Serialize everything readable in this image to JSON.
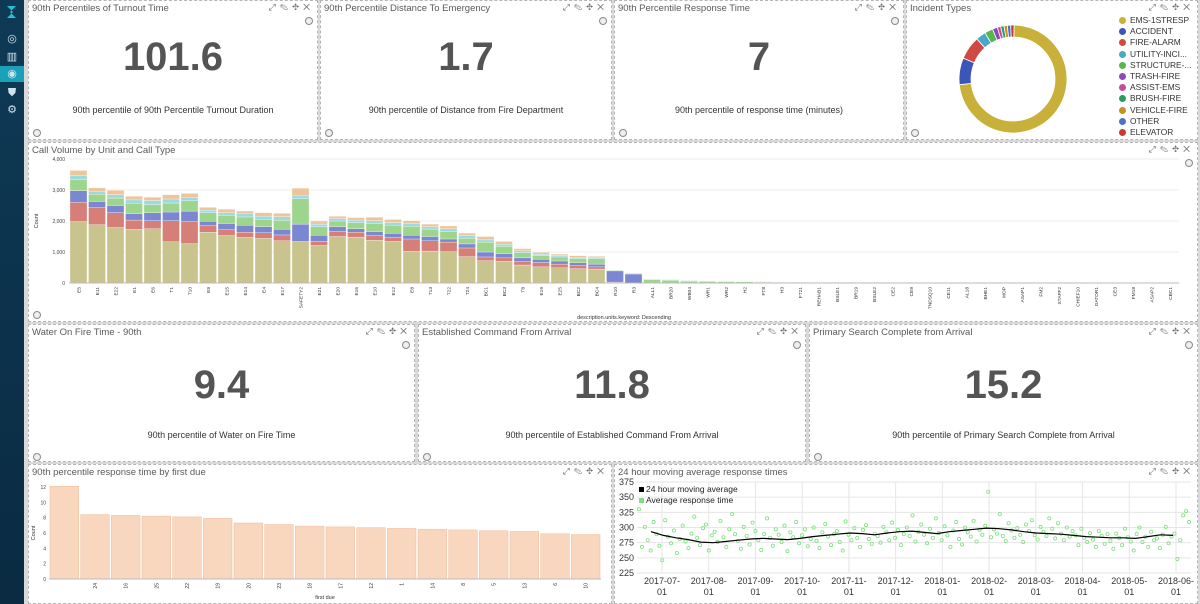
{
  "nav": {
    "items": [
      "dashboard",
      "visualize",
      "discover",
      "devtools",
      "settings"
    ]
  },
  "panels": {
    "turnout": {
      "title": "90th Percentiles of Turnout Time",
      "value": "101.6",
      "label": "90th percentile of 90th Percentile Turnout Duration"
    },
    "distance": {
      "title": "90th Percentile Distance To Emergency",
      "value": "1.7",
      "label": "90th percentile of Distance from Fire Department"
    },
    "response": {
      "title": "90th Percentile Response Time",
      "value": "7",
      "label": "90th percentile of response time (minutes)"
    },
    "incidents": {
      "title": "Incident Types",
      "legend": [
        {
          "label": "EMS-1STRESP",
          "color": "#c9b03a"
        },
        {
          "label": "ACCIDENT",
          "color": "#3c55b9"
        },
        {
          "label": "FIRE-ALARM",
          "color": "#cf4a43"
        },
        {
          "label": "UTILITY-INCI...",
          "color": "#4aa7c9"
        },
        {
          "label": "STRUCTURE-...",
          "color": "#58b64d"
        },
        {
          "label": "TRASH-FIRE",
          "color": "#8c4bb3"
        },
        {
          "label": "ASSIST-EMS",
          "color": "#c94b9f"
        },
        {
          "label": "BRUSH-FIRE",
          "color": "#2e9a62"
        },
        {
          "label": "VEHICLE-FIRE",
          "color": "#c7911f"
        },
        {
          "label": "OTHER",
          "color": "#4f6fca"
        },
        {
          "label": "ELEVATOR",
          "color": "#c63b2d"
        }
      ]
    },
    "callvolume": {
      "title": "Call Volume by Unit and Call Type"
    },
    "water": {
      "title": "Water On Fire Time - 90th",
      "value": "9.4",
      "label": "90th percentile of Water on Fire Time"
    },
    "command": {
      "title": "Established Command From Arrival",
      "value": "11.8",
      "label": "90th percentile of Established Command From Arrival"
    },
    "search": {
      "title": "Primary Search Complete from Arrival",
      "value": "15.2",
      "label": "90th percentile of Primary Search Complete from Arrival"
    },
    "firstdue": {
      "title": "90th percentile response time by first due"
    },
    "moving": {
      "title": "24 hour moving average response times"
    }
  },
  "chart_data": [
    {
      "type": "bar",
      "title": "Call Volume by Unit and Call Type",
      "xlabel": "description.units.keyword: Descending",
      "ylabel": "Count",
      "ylim": [
        0,
        4000
      ],
      "yticks": [
        "0",
        "1,000",
        "2,000",
        "3,000",
        "4,000"
      ],
      "categories": [
        "E5",
        "E11",
        "E22",
        "E1",
        "E6",
        "T1",
        "T10",
        "E9",
        "E15",
        "E14",
        "E4",
        "E17",
        "SAFETY2",
        "E21",
        "E20",
        "E16",
        "E10",
        "E12",
        "E8",
        "T13",
        "T22",
        "T24",
        "BC1",
        "BC3",
        "T8",
        "E19",
        "E25",
        "BC2",
        "BC4",
        "R10",
        "R3",
        "ALL1",
        "BR20",
        "WB04",
        "WR1",
        "WR2",
        "H2",
        "FT8",
        "H3",
        "FT21",
        "REHAB1",
        "BSLE1",
        "BR19",
        "BSLE2",
        "CE2",
        "CE9",
        "TNDSQ10",
        "CE11",
        "AL18",
        "BHE1",
        "MOP",
        "ASAP1",
        "FM2",
        "STAFF2",
        "CHIEF10",
        "GATOR1",
        "CE3",
        "FM18",
        "ASAP2",
        "CBC1"
      ],
      "series": [
        {
          "name": "EMS-1STRESP",
          "values": [
            1980,
            1880,
            1790,
            1730,
            1750,
            1330,
            1270,
            1640,
            1530,
            1470,
            1440,
            1360,
            1340,
            1210,
            1500,
            1480,
            1380,
            1340,
            1020,
            1030,
            1010,
            850,
            720,
            700,
            580,
            520,
            490,
            460,
            450,
            0,
            0,
            0,
            0,
            0,
            0,
            0,
            0,
            0,
            0,
            0,
            0,
            0,
            0,
            0,
            0,
            0,
            0,
            0,
            0,
            0,
            0,
            0,
            0,
            0,
            0,
            0,
            0,
            0,
            0,
            0
          ]
        },
        {
          "name": "FIRE-ALARM",
          "values": [
            620,
            550,
            480,
            300,
            260,
            680,
            720,
            220,
            190,
            170,
            180,
            190,
            0,
            140,
            170,
            160,
            150,
            140,
            400,
            330,
            310,
            280,
            120,
            110,
            110,
            140,
            120,
            100,
            70,
            30,
            0,
            0,
            0,
            0,
            0,
            0,
            0,
            0,
            0,
            0,
            0,
            0,
            0,
            0,
            0,
            0,
            0,
            0,
            0,
            0,
            0,
            0,
            0,
            0,
            0,
            0,
            0,
            0,
            0,
            0
          ]
        },
        {
          "name": "ACCIDENT",
          "values": [
            380,
            200,
            230,
            210,
            260,
            280,
            330,
            130,
            200,
            220,
            200,
            180,
            560,
            190,
            150,
            110,
            130,
            120,
            120,
            140,
            100,
            130,
            160,
            140,
            120,
            110,
            100,
            90,
            90,
            360,
            290,
            0,
            0,
            0,
            0,
            0,
            0,
            0,
            0,
            0,
            0,
            0,
            0,
            0,
            0,
            0,
            0,
            0,
            0,
            0,
            0,
            0,
            0,
            0,
            0,
            0,
            0,
            0,
            0,
            0
          ]
        },
        {
          "name": "STRUCTURE-FIRE",
          "values": [
            350,
            230,
            240,
            330,
            260,
            290,
            330,
            280,
            260,
            270,
            240,
            290,
            820,
            280,
            180,
            200,
            260,
            260,
            290,
            240,
            230,
            180,
            320,
            240,
            170,
            110,
            130,
            140,
            170,
            20,
            20,
            110,
            90,
            60,
            50,
            40,
            40,
            30,
            25,
            25,
            20,
            18,
            16,
            16,
            14,
            12,
            12,
            10,
            10,
            10,
            8,
            8,
            8,
            7,
            7,
            6,
            6,
            5,
            5,
            5
          ]
        },
        {
          "name": "UTILITY-INCIDENT",
          "values": [
            130,
            100,
            110,
            110,
            130,
            130,
            120,
            80,
            90,
            100,
            90,
            120,
            90,
            80,
            80,
            80,
            90,
            90,
            80,
            80,
            100,
            90,
            70,
            60,
            60,
            50,
            40,
            40,
            40,
            10,
            10,
            20,
            20,
            20,
            15,
            15,
            10,
            10,
            10,
            10,
            8,
            8,
            8,
            8,
            6,
            6,
            6,
            6,
            6,
            6,
            5,
            5,
            5,
            5,
            5,
            5,
            4,
            4,
            4,
            4
          ]
        },
        {
          "name": "OTHER",
          "values": [
            170,
            110,
            140,
            120,
            110,
            140,
            120,
            90,
            110,
            90,
            120,
            110,
            250,
            100,
            70,
            80,
            110,
            100,
            100,
            80,
            90,
            80,
            110,
            90,
            70,
            60,
            50,
            50,
            40,
            10,
            10,
            10,
            10,
            10,
            10,
            10,
            10,
            10,
            10,
            10,
            5,
            5,
            5,
            5,
            5,
            5,
            5,
            5,
            5,
            5,
            5,
            5,
            5,
            5,
            5,
            5,
            5,
            5,
            5,
            5
          ]
        }
      ]
    },
    {
      "type": "bar",
      "title": "90th percentile response time by first due",
      "xlabel": "first due",
      "ylabel": "Count",
      "ylim": [
        0,
        12
      ],
      "yticks": [
        "0",
        "2",
        "4",
        "6",
        "8",
        "10",
        "12"
      ],
      "categories": [
        "",
        "24",
        "16",
        "25",
        "22",
        "19",
        "20",
        "23",
        "18",
        "17",
        "12",
        "1",
        "14",
        "8",
        "5",
        "13",
        "6",
        "10"
      ],
      "values": [
        12.1,
        8.4,
        8.3,
        8.2,
        8.1,
        7.9,
        7.3,
        7.1,
        6.9,
        6.8,
        6.7,
        6.6,
        6.5,
        6.4,
        6.3,
        6.2,
        5.9,
        5.8
      ]
    },
    {
      "type": "line",
      "title": "24 hour moving average response times",
      "ylim": [
        225,
        375
      ],
      "yticks": [
        "225",
        "250",
        "275",
        "300",
        "325",
        "350",
        "375"
      ],
      "xticks": [
        "2017-07-01",
        "2017-08-01",
        "2017-09-01",
        "2017-10-01",
        "2017-11-01",
        "2017-12-01",
        "2018-01-01",
        "2018-02-01",
        "2018-03-01",
        "2018-04-01",
        "2018-05-01",
        "2018-06-01"
      ],
      "xtick_lines": [
        [
          "2017-07-",
          "01"
        ],
        [
          "2017-08-",
          "01"
        ],
        [
          "2017-09-",
          "01"
        ],
        [
          "2017-10-",
          "01"
        ],
        [
          "2017-11-",
          "01"
        ],
        [
          "2017-12-",
          "01"
        ],
        [
          "2018-01-",
          "01"
        ],
        [
          "2018-02-",
          "01"
        ],
        [
          "2018-03-",
          "01"
        ],
        [
          "2018-04-",
          "01"
        ],
        [
          "2018-05-",
          "01"
        ],
        [
          "2018-06-",
          "01"
        ]
      ],
      "series": [
        {
          "name": "24 hour moving average",
          "color": "#000000",
          "values": [
            293,
            287,
            283,
            280,
            276,
            275,
            277,
            279,
            281,
            282,
            281,
            280,
            282,
            285,
            287,
            289,
            291,
            290,
            288,
            291,
            293,
            294,
            292,
            290,
            293,
            295,
            297,
            299,
            298,
            296,
            293,
            291,
            290,
            289,
            287,
            285,
            284,
            283,
            283,
            282,
            285,
            288,
            287
          ]
        },
        {
          "name": "Average response time",
          "color": "#90e890",
          "values": [
            330,
            268,
            301,
            279,
            262,
            309,
            289,
            270,
            246,
            312,
            285,
            274,
            295,
            258,
            281,
            303,
            277,
            266,
            290,
            318,
            283,
            271,
            299,
            305,
            262,
            287,
            293,
            276,
            311,
            284,
            268,
            297,
            322,
            289,
            278,
            265,
            301,
            286,
            272,
            308,
            294,
            279,
            263,
            289,
            315,
            283,
            270,
            297,
            288,
            276,
            303,
            261,
            292,
            284,
            309,
            274,
            287,
            297,
            269,
            281,
            300,
            278,
            266,
            292,
            306,
            285,
            271,
            289,
            294,
            276,
            262,
            310,
            288,
            279,
            299,
            283,
            268,
            296,
            304,
            281,
            273,
            290,
            286,
            275,
            301,
            292,
            279,
            308,
            283,
            296,
            271,
            289,
            300,
            286,
            320,
            277,
            293,
            305,
            288,
            274,
            298,
            283,
            315,
            291,
            279,
            302,
            287,
            268,
            295,
            309,
            281,
            272,
            300,
            292,
            285,
            311,
            277,
            296,
            288,
            303,
            359,
            284,
            297,
            290,
            322,
            286,
            278,
            307,
            295,
            283,
            299,
            288,
            276,
            305,
            294,
            312,
            287,
            280,
            301,
            293,
            286,
            315,
            298,
            282,
            307,
            290,
            279,
            300,
            285,
            294,
            287,
            271,
            298,
            283,
            276,
            291,
            280,
            268,
            294,
            286,
            273,
            289,
            278,
            265,
            290,
            283,
            271,
            298,
            284,
            277,
            262,
            289,
            300,
            276,
            285,
            268,
            293,
            279,
            282,
            266,
            288,
            301,
            274,
            285,
            290,
            248,
            279,
            320,
            327,
            309
          ]
        }
      ]
    }
  ]
}
